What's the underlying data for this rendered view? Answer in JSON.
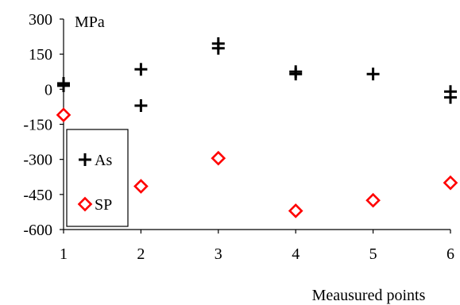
{
  "chart_data": {
    "type": "scatter",
    "title": "",
    "xlabel": "Meausured points",
    "ylabel": "",
    "unit_label": "MPa",
    "xlim": [
      1,
      6
    ],
    "ylim": [
      -600,
      300
    ],
    "x_ticks": [
      1,
      2,
      3,
      4,
      5,
      6
    ],
    "y_ticks": [
      300,
      150,
      0,
      -150,
      -300,
      -450,
      -600
    ],
    "grid": false,
    "legend": {
      "placement": "left-middle",
      "entries": [
        "As",
        "SP"
      ]
    },
    "series": [
      {
        "name": "As",
        "marker": "plus",
        "color": "#000000",
        "points": [
          {
            "x": 1,
            "y": 25
          },
          {
            "x": 1,
            "y": 15
          },
          {
            "x": 2,
            "y": 85
          },
          {
            "x": 2,
            "y": -70
          },
          {
            "x": 3,
            "y": 195
          },
          {
            "x": 3,
            "y": 175
          },
          {
            "x": 4,
            "y": 75
          },
          {
            "x": 4,
            "y": 65
          },
          {
            "x": 5,
            "y": 65
          },
          {
            "x": 6,
            "y": -10
          },
          {
            "x": 6,
            "y": -35
          }
        ]
      },
      {
        "name": "SP",
        "marker": "diamond",
        "color": "#ff0000",
        "points": [
          {
            "x": 1,
            "y": -110
          },
          {
            "x": 2,
            "y": -415
          },
          {
            "x": 3,
            "y": -295
          },
          {
            "x": 4,
            "y": -520
          },
          {
            "x": 5,
            "y": -475
          },
          {
            "x": 6,
            "y": -400
          }
        ]
      }
    ]
  }
}
